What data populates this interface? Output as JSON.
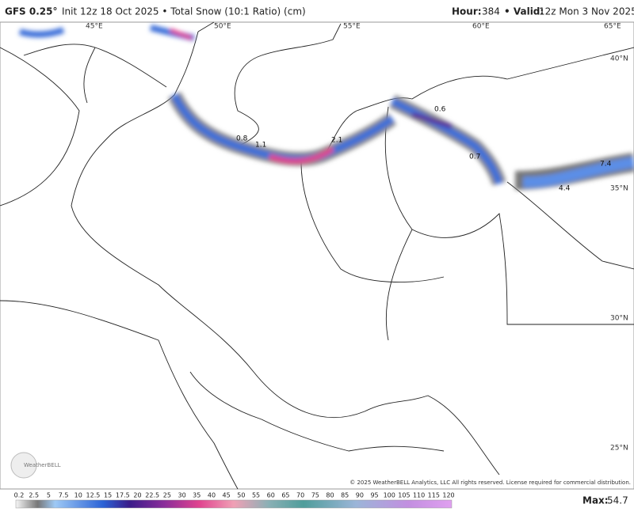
{
  "header": {
    "model": "GFS 0.25°",
    "run": "Init 12z 18 Oct 2025 • Total Snow (10:1 Ratio) (cm)",
    "hour_label": "Hour:",
    "hour": "384",
    "valid_label": "• Valid:",
    "valid": "12z Mon 3 Nov 2025"
  },
  "map": {
    "longitudes": [
      "45°E",
      "50°E",
      "55°E",
      "60°E",
      "65°E"
    ],
    "latitudes": [
      "40°N",
      "35°N",
      "30°N",
      "25°N"
    ],
    "point_values": [
      "0.8",
      "1.1",
      "2.1",
      "0.6",
      "0.7",
      "7.4",
      "4.4"
    ],
    "logo": "WeatherBELL",
    "copyright": "© 2025 WeatherBELL Analytics, LLC All rights reserved. License required for commercial distribution."
  },
  "colorbar": {
    "ticks": [
      "0.2",
      "2.5",
      "5",
      "7.5",
      "10",
      "12.5",
      "15",
      "17.5",
      "20",
      "22.5",
      "25",
      "30",
      "35",
      "40",
      "45",
      "50",
      "55",
      "60",
      "65",
      "70",
      "75",
      "80",
      "85",
      "90",
      "95",
      "100",
      "105",
      "110",
      "115",
      "120"
    ]
  },
  "footer": {
    "max_label": "Max:",
    "max_value": "54.7"
  }
}
